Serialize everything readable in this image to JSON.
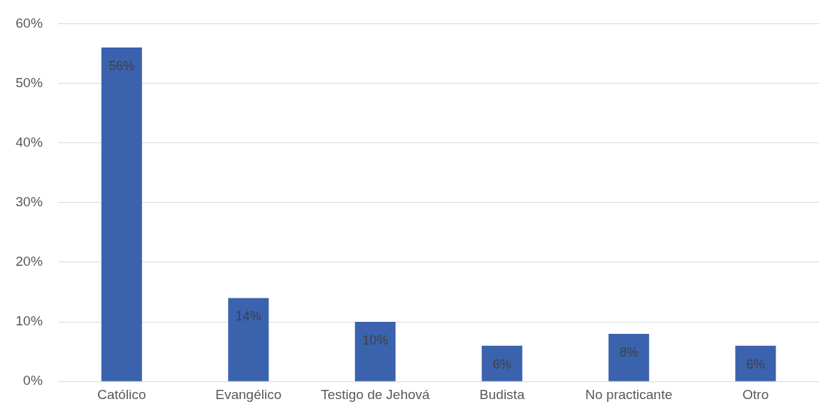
{
  "chart_data": {
    "type": "bar",
    "categories": [
      "Católico",
      "Evangélico",
      "Testigo de Jehová",
      "Budista",
      "No practicante",
      "Otro"
    ],
    "values": [
      56,
      14,
      10,
      6,
      8,
      6
    ],
    "value_labels": [
      "56%",
      "14%",
      "10%",
      "6%",
      "8%",
      "6%"
    ],
    "color": "#3a62ad",
    "ylim": [
      0,
      60
    ],
    "yticks": [
      {
        "value": 0,
        "label": "0%"
      },
      {
        "value": 10,
        "label": "10%"
      },
      {
        "value": 20,
        "label": "20%"
      },
      {
        "value": 30,
        "label": "30%"
      },
      {
        "value": 40,
        "label": "40%"
      },
      {
        "value": 50,
        "label": "50%"
      },
      {
        "value": 60,
        "label": "60%"
      }
    ],
    "grid": "y",
    "legend": false
  }
}
